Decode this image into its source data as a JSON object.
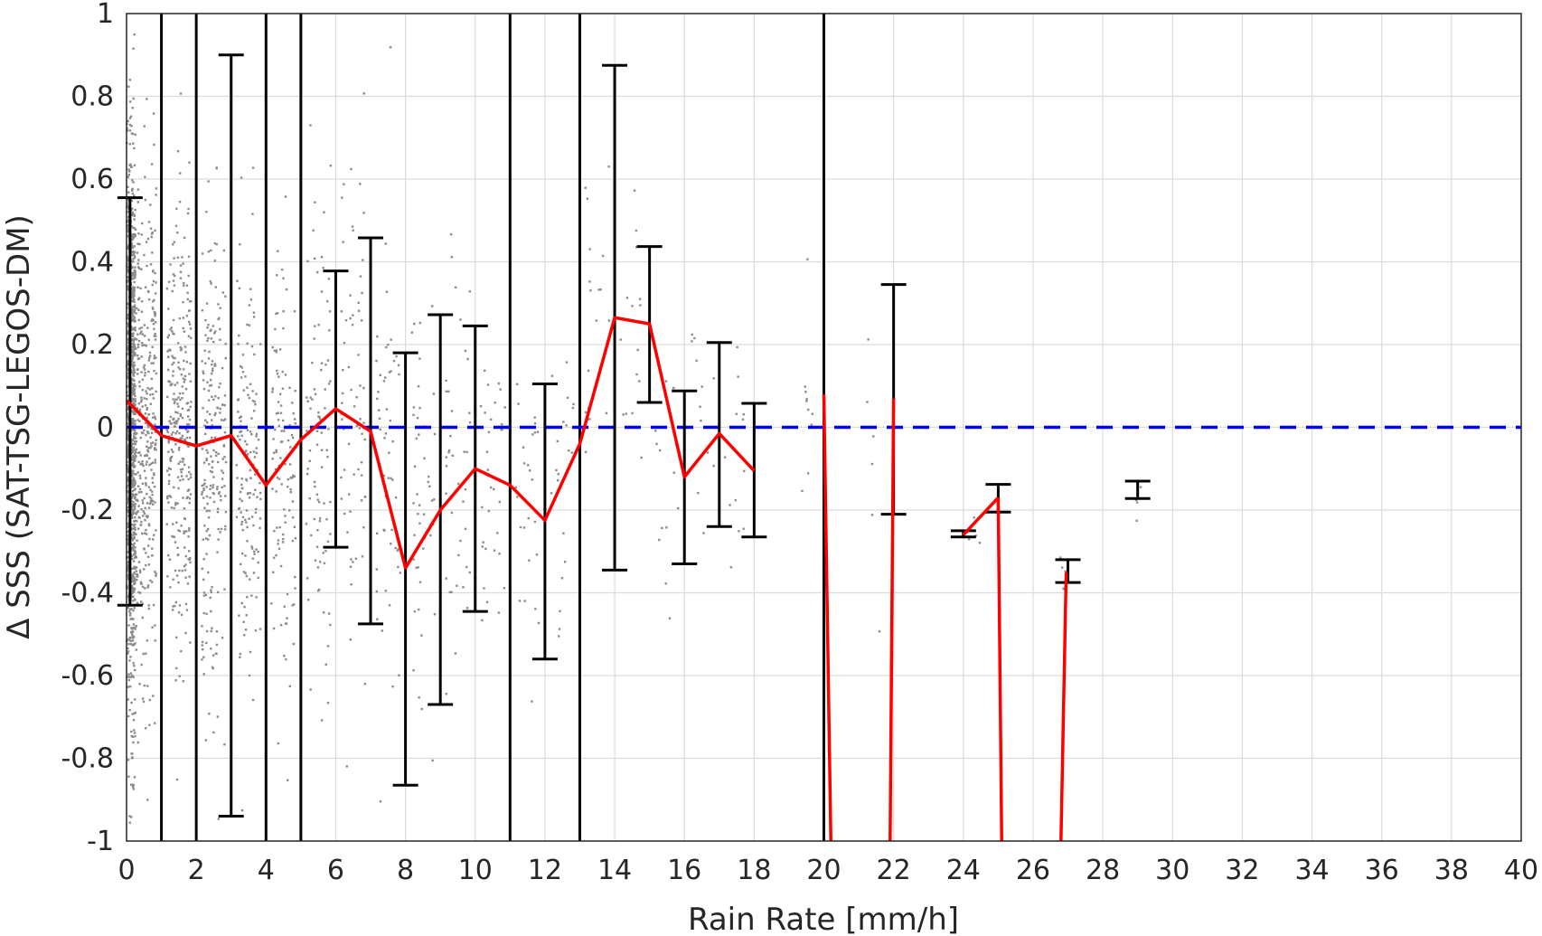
{
  "chart_data": {
    "type": "scatter",
    "title": "",
    "xlabel": "Rain Rate [mm/h]",
    "ylabel": "Δ SSS (SAT-TSG-LEGOS-DM)",
    "xlim": [
      0,
      40
    ],
    "ylim": [
      -1,
      1
    ],
    "xticks": [
      0,
      2,
      4,
      6,
      8,
      10,
      12,
      14,
      16,
      18,
      20,
      22,
      24,
      26,
      28,
      30,
      32,
      34,
      36,
      38,
      40
    ],
    "yticks": [
      -1,
      -0.8,
      -0.6,
      -0.4,
      -0.2,
      0,
      0.2,
      0.4,
      0.6,
      0.8,
      1
    ],
    "xtick_labels": [
      "0",
      "2",
      "4",
      "6",
      "8",
      "10",
      "12",
      "14",
      "16",
      "18",
      "20",
      "22",
      "24",
      "26",
      "28",
      "30",
      "32",
      "34",
      "36",
      "38",
      "40"
    ],
    "ytick_labels": [
      "-1",
      "-0.8",
      "-0.6",
      "-0.4",
      "-0.2",
      "0",
      "0.2",
      "0.4",
      "0.6",
      "0.8",
      "1"
    ],
    "grid": true,
    "colors": {
      "scatter": "#8c8c8c",
      "mean_line": "#ff0000",
      "zero_line": "#0000ff",
      "errorbar": "#000000",
      "bin_edges": "#000000"
    },
    "bin_edges": [
      1,
      2,
      4,
      5,
      11,
      13,
      20
    ],
    "zero_line": 0,
    "mean_line": {
      "x": [
        0,
        1,
        2,
        3,
        4,
        5,
        6,
        7,
        8,
        9,
        10,
        11,
        12,
        13,
        14,
        15,
        16,
        17,
        18
      ],
      "y": [
        0.065,
        -0.02,
        -0.045,
        -0.02,
        -0.14,
        -0.03,
        0.045,
        -0.01,
        -0.34,
        -0.2,
        -0.1,
        -0.14,
        -0.225,
        -0.04,
        0.265,
        0.25,
        -0.12,
        -0.015,
        -0.105
      ]
    },
    "mean_line_fragments": [
      {
        "x": [
          20,
          20.2
        ],
        "y": [
          0.08,
          -1
        ]
      },
      {
        "x": [
          21.9,
          22
        ],
        "y": [
          -1,
          0.07
        ]
      },
      {
        "x": [
          24,
          25
        ],
        "y": [
          -0.26,
          -0.17
        ]
      },
      {
        "x": [
          25,
          25.1
        ],
        "y": [
          -0.17,
          -1
        ]
      },
      {
        "x": [
          26.8,
          26.95
        ],
        "y": [
          -1,
          -0.35
        ]
      }
    ],
    "error_bars": [
      {
        "x": 0.1,
        "low": -0.43,
        "high": 0.555
      },
      {
        "x": 3,
        "low": -0.94,
        "high": 0.9
      },
      {
        "x": 6,
        "low": -0.29,
        "high": 0.378
      },
      {
        "x": 7,
        "low": -0.475,
        "high": 0.458
      },
      {
        "x": 8,
        "low": -0.865,
        "high": 0.18
      },
      {
        "x": 9,
        "low": -0.67,
        "high": 0.272
      },
      {
        "x": 10,
        "low": -0.445,
        "high": 0.245
      },
      {
        "x": 12,
        "low": -0.56,
        "high": 0.105
      },
      {
        "x": 14,
        "low": -0.345,
        "high": 0.875
      },
      {
        "x": 15,
        "low": 0.06,
        "high": 0.437
      },
      {
        "x": 16,
        "low": -0.33,
        "high": 0.088
      },
      {
        "x": 17,
        "low": -0.24,
        "high": 0.205
      },
      {
        "x": 18,
        "low": -0.265,
        "high": 0.058
      },
      {
        "x": 22,
        "low": -0.21,
        "high": 0.345
      },
      {
        "x": 24,
        "low": -0.265,
        "high": -0.25
      },
      {
        "x": 25,
        "low": -0.205,
        "high": -0.138
      },
      {
        "x": 27,
        "low": -0.375,
        "high": -0.32
      },
      {
        "x": 29,
        "low": -0.172,
        "high": -0.13
      }
    ],
    "scatter_clusters": [
      {
        "x": 0.05,
        "dx": 0.2,
        "mean": 0,
        "sd": 0.33,
        "n": 1400
      },
      {
        "x": 0.5,
        "dx": 0.35,
        "mean": -0.02,
        "sd": 0.3,
        "n": 450
      },
      {
        "x": 1.5,
        "dx": 0.35,
        "mean": -0.04,
        "sd": 0.27,
        "n": 300
      },
      {
        "x": 2.5,
        "dx": 0.35,
        "mean": -0.05,
        "sd": 0.27,
        "n": 220
      },
      {
        "x": 3.5,
        "dx": 0.35,
        "mean": -0.08,
        "sd": 0.25,
        "n": 150
      },
      {
        "x": 4.5,
        "dx": 0.35,
        "mean": -0.1,
        "sd": 0.25,
        "n": 120
      },
      {
        "x": 5.5,
        "dx": 0.35,
        "mean": 0,
        "sd": 0.3,
        "n": 90
      },
      {
        "x": 6.5,
        "dx": 0.35,
        "mean": 0.02,
        "sd": 0.3,
        "n": 70
      },
      {
        "x": 7.5,
        "dx": 0.35,
        "mean": -0.15,
        "sd": 0.3,
        "n": 55
      },
      {
        "x": 8.5,
        "dx": 0.35,
        "mean": -0.2,
        "sd": 0.28,
        "n": 45
      },
      {
        "x": 9.5,
        "dx": 0.35,
        "mean": -0.1,
        "sd": 0.25,
        "n": 40
      },
      {
        "x": 10.5,
        "dx": 0.35,
        "mean": -0.12,
        "sd": 0.2,
        "n": 32
      },
      {
        "x": 11.5,
        "dx": 0.35,
        "mean": -0.2,
        "sd": 0.2,
        "n": 25
      },
      {
        "x": 12.5,
        "dx": 0.35,
        "mean": -0.1,
        "sd": 0.2,
        "n": 20
      },
      {
        "x": 13.5,
        "dx": 0.35,
        "mean": 0.2,
        "sd": 0.25,
        "n": 20
      },
      {
        "x": 14.5,
        "dx": 0.35,
        "mean": 0.2,
        "sd": 0.15,
        "n": 15
      },
      {
        "x": 15.5,
        "dx": 0.35,
        "mean": -0.1,
        "sd": 0.15,
        "n": 14
      },
      {
        "x": 16.5,
        "dx": 0.35,
        "mean": 0,
        "sd": 0.15,
        "n": 12
      },
      {
        "x": 17.5,
        "dx": 0.35,
        "mean": -0.15,
        "sd": 0.15,
        "n": 12
      },
      {
        "x": 19.5,
        "dx": 0.2,
        "mean": 0.05,
        "sd": 0.15,
        "n": 10
      },
      {
        "x": 21.5,
        "dx": 0.35,
        "mean": 0,
        "sd": 0.2,
        "n": 6
      },
      {
        "x": 24.3,
        "dx": 0.2,
        "mean": -0.26,
        "sd": 0.02,
        "n": 6
      },
      {
        "x": 26.8,
        "dx": 0.15,
        "mean": -0.35,
        "sd": 0.03,
        "n": 6
      },
      {
        "x": 29,
        "dx": 0.1,
        "mean": -0.18,
        "sd": 0.03,
        "n": 5
      }
    ]
  }
}
